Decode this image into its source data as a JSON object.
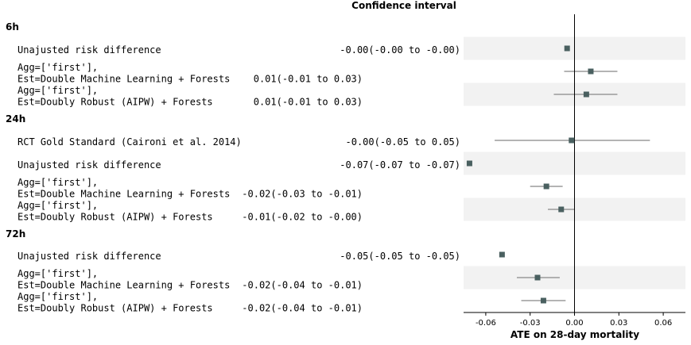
{
  "chart_data": {
    "type": "forest",
    "title": "Confidence interval",
    "xlabel": "ATE on 28-day mortality",
    "xlim": [
      -0.075,
      0.075
    ],
    "xticks": [
      "-0.06",
      "-0.03",
      "0.00",
      "0.03",
      "0.06"
    ],
    "xtick_values": [
      -0.06,
      -0.03,
      0.0,
      0.03,
      0.06
    ],
    "reference_line": 0,
    "marker_color": "#4a6060",
    "band_color": "#f2f2f2",
    "groups": [
      {
        "label": "6h",
        "rows": [
          {
            "lines": [
              "Unajusted risk difference"
            ],
            "ci_text": "-0.00(-0.00 to -0.00)",
            "estimate": -0.005,
            "low": -0.005,
            "high": -0.005
          },
          {
            "lines": [
              "Agg=['first'],",
              "Est=Double Machine Learning + Forests"
            ],
            "ci_text": "0.01(-0.01 to  0.03)",
            "estimate": 0.011,
            "low": -0.007,
            "high": 0.029
          },
          {
            "lines": [
              "Agg=['first'],",
              "Est=Doubly Robust (AIPW) + Forests"
            ],
            "ci_text": "0.01(-0.01 to  0.03)",
            "estimate": 0.008,
            "low": -0.014,
            "high": 0.029
          }
        ]
      },
      {
        "label": "24h",
        "rows": [
          {
            "lines": [
              "RCT Gold Standard (Caironi et al. 2014)"
            ],
            "ci_text": "-0.00(-0.05 to  0.05)",
            "estimate": -0.002,
            "low": -0.054,
            "high": 0.051
          },
          {
            "lines": [
              "Unajusted risk difference"
            ],
            "ci_text": "-0.07(-0.07 to -0.07)",
            "estimate": -0.071,
            "low": -0.071,
            "high": -0.071
          },
          {
            "lines": [
              "Agg=['first'],",
              "Est=Double Machine Learning + Forests"
            ],
            "ci_text": "-0.02(-0.03 to -0.01)",
            "estimate": -0.019,
            "low": -0.03,
            "high": -0.008
          },
          {
            "lines": [
              "Agg=['first'],",
              "Est=Doubly Robust (AIPW) + Forests"
            ],
            "ci_text": "-0.01(-0.02 to -0.00)",
            "estimate": -0.009,
            "low": -0.018,
            "high": 0.0
          }
        ]
      },
      {
        "label": "72h",
        "rows": [
          {
            "lines": [
              "Unajusted risk difference"
            ],
            "ci_text": "-0.05(-0.05 to -0.05)",
            "estimate": -0.049,
            "low": -0.049,
            "high": -0.049
          },
          {
            "lines": [
              "Agg=['first'],",
              "Est=Double Machine Learning + Forests"
            ],
            "ci_text": "-0.02(-0.04 to -0.01)",
            "estimate": -0.025,
            "low": -0.039,
            "high": -0.01
          },
          {
            "lines": [
              "Agg=['first'],",
              "Est=Doubly Robust (AIPW) + Forests"
            ],
            "ci_text": "-0.02(-0.04 to -0.01)",
            "estimate": -0.021,
            "low": -0.036,
            "high": -0.006
          }
        ]
      }
    ]
  }
}
